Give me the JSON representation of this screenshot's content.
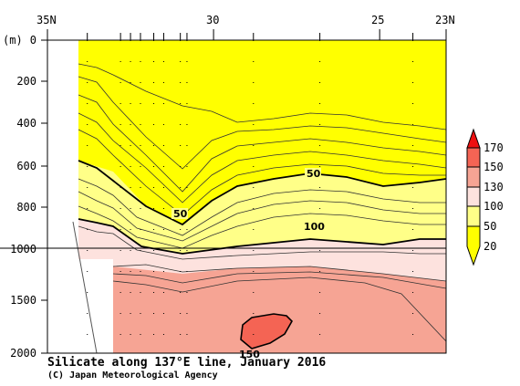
{
  "chart_data": {
    "type": "heatmap",
    "title": "Silicate along 137°E line, January 2016",
    "credit": "(C) Japan Meteorological Agency",
    "xlabel": "",
    "ylabel": "(m)",
    "x_axis": {
      "direction": "latitude decreasing to the right",
      "range": [
        35,
        23
      ],
      "tick_labels": [
        {
          "lat": 35,
          "label": "35N"
        },
        {
          "lat": 30,
          "label": "30"
        },
        {
          "lat": 25,
          "label": "25"
        },
        {
          "lat": 23,
          "label": "23N"
        }
      ],
      "station_lats": [
        33.8,
        32.8,
        32.5,
        32.2,
        31.8,
        31.5,
        31.0,
        30.8,
        28.8,
        26.8,
        24.0
      ]
    },
    "y_axis": {
      "unit": "m",
      "range": [
        0,
        2000
      ],
      "upper_panel": [
        0,
        1000
      ],
      "lower_panel": [
        1000,
        2000
      ],
      "tick_labels": [
        "0",
        "200",
        "400",
        "600",
        "800",
        "1000",
        "1500",
        "2000"
      ]
    },
    "color_scale": {
      "levels": [
        20,
        50,
        100,
        130,
        150,
        170
      ],
      "labels": [
        "20",
        "50",
        "100",
        "130",
        "150",
        "170"
      ],
      "colors": [
        "#ffff00",
        "#ffff88",
        "#fde2de",
        "#f6a494",
        "#f46454",
        "#ee1010"
      ]
    },
    "contour_labels": [
      {
        "label": "50",
        "lat": 30.7,
        "depth": 840
      },
      {
        "label": "50",
        "lat": 28.1,
        "depth": 640
      },
      {
        "label": "100",
        "lat": 28.0,
        "depth": 890
      },
      {
        "label": "150",
        "lat": 30.3,
        "depth": 1975
      }
    ]
  }
}
